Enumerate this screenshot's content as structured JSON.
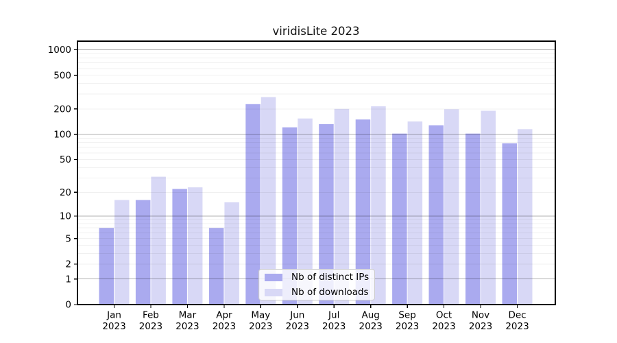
{
  "title": "viridisLite 2023",
  "chart_data": {
    "type": "bar",
    "title": "viridisLite 2023",
    "categories": [
      "Jan",
      "Feb",
      "Mar",
      "Apr",
      "May",
      "Jun",
      "Jul",
      "Aug",
      "Sep",
      "Oct",
      "Nov",
      "Dec"
    ],
    "year": "2023",
    "series": [
      {
        "name": "Nb of distinct IPs",
        "color": "#aaaaef",
        "values": [
          7,
          16,
          22,
          7,
          228,
          121,
          132,
          150,
          102,
          128,
          102,
          78
        ]
      },
      {
        "name": "Nb of downloads",
        "color": "#d8d8f6",
        "values": [
          16,
          31,
          23,
          15,
          276,
          154,
          200,
          215,
          142,
          198,
          190,
          115
        ]
      }
    ],
    "yscale": "log1p",
    "yticks": [
      0,
      1,
      2,
      5,
      10,
      20,
      50,
      100,
      200,
      500,
      1000
    ],
    "ylim": [
      0,
      1260
    ],
    "xlabel": "",
    "ylabel": "",
    "grid": true,
    "legend_position": "lower center",
    "colors": {
      "axis": "#000000",
      "grid_major": "rgba(0,0,0,0.30)",
      "grid_minor": "rgba(0,0,0,0.06)",
      "tick_label": "#000000"
    }
  }
}
